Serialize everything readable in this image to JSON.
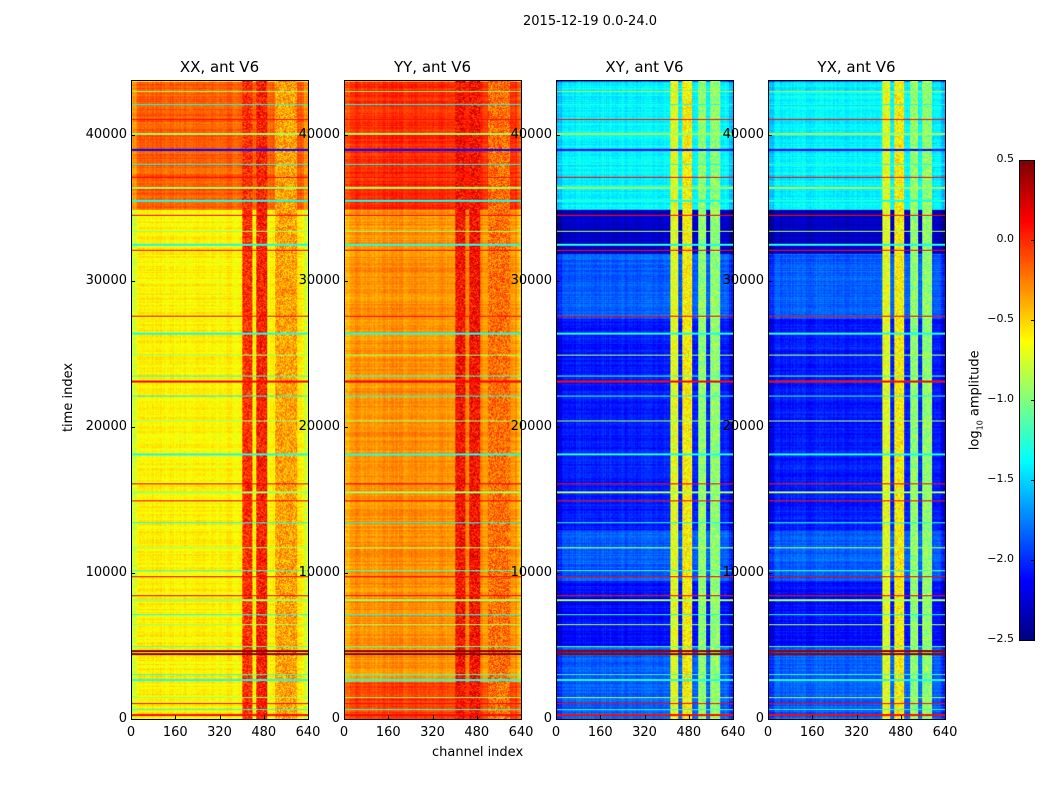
{
  "chart_data": {
    "type": "heatmap",
    "title": "2015-12-19 0.0-24.0",
    "xlabel": "channel index",
    "ylabel": "time index",
    "xlim": [
      0,
      640
    ],
    "ylim": [
      0,
      43800
    ],
    "xticks": [
      0,
      160,
      320,
      480,
      640
    ],
    "yticks": [
      0,
      10000,
      20000,
      30000,
      40000
    ],
    "colormap": "jet",
    "colorbar": {
      "label_main": "log",
      "label_sub": "10",
      "label_rest": " amplitude",
      "range": [
        -2.5,
        0.5
      ],
      "ticks": [
        "0.5",
        "0.0",
        "−0.5",
        "−1.0",
        "−1.5",
        "−2.0",
        "−2.5"
      ],
      "tick_values": [
        0.5,
        0.0,
        -0.5,
        -1.0,
        -1.5,
        -2.0,
        -2.5
      ]
    },
    "panels": [
      {
        "title": "XX, ant V6",
        "base_level": -0.6,
        "regions": [
          {
            "y": [
              35000,
              43800
            ],
            "level": -0.15
          }
        ],
        "channel_bands": [
          {
            "ch": [
              400,
              435
            ],
            "level": 0.0
          },
          {
            "ch": [
              450,
              490
            ],
            "level": 0.05
          },
          {
            "ch": [
              520,
              600
            ],
            "level": -0.35
          }
        ]
      },
      {
        "title": "YY, ant V6",
        "base_level": -0.3,
        "regions": [
          {
            "y": [
              35000,
              43800
            ],
            "level": 0.0
          },
          {
            "y": [
              0,
              2600
            ],
            "level": -0.05
          }
        ],
        "channel_bands": [
          {
            "ch": [
              400,
              435
            ],
            "level": 0.1
          },
          {
            "ch": [
              450,
              490
            ],
            "level": 0.1
          },
          {
            "ch": [
              520,
              600
            ],
            "level": -0.2
          }
        ]
      },
      {
        "title": "XY, ant V6",
        "base_level": -1.85,
        "regions": [
          {
            "y": [
              35000,
              43800
            ],
            "level": -1.4
          },
          {
            "y": [
              32000,
              35000
            ],
            "level": -2.3
          },
          {
            "y": [
              5000,
              9500
            ],
            "level": -2.1
          },
          {
            "y": [
              13000,
              27500
            ],
            "level": -2.05
          }
        ],
        "channel_bands": [
          {
            "ch": [
              410,
              440
            ],
            "level": -0.7
          },
          {
            "ch": [
              455,
              490
            ],
            "level": -0.6
          },
          {
            "ch": [
              510,
              540
            ],
            "level": -0.95
          },
          {
            "ch": [
              555,
              590
            ],
            "level": -0.95
          }
        ]
      },
      {
        "title": "YX, ant V6",
        "base_level": -1.85,
        "regions": [
          {
            "y": [
              35000,
              43800
            ],
            "level": -1.4
          },
          {
            "y": [
              32000,
              35000
            ],
            "level": -2.3
          },
          {
            "y": [
              5000,
              9500
            ],
            "level": -2.1
          },
          {
            "y": [
              13000,
              27500
            ],
            "level": -2.05
          }
        ],
        "channel_bands": [
          {
            "ch": [
              410,
              440
            ],
            "level": -0.7
          },
          {
            "ch": [
              455,
              490
            ],
            "level": -0.6
          },
          {
            "ch": [
              510,
              540
            ],
            "level": -0.95
          },
          {
            "ch": [
              555,
              590
            ],
            "level": -0.95
          }
        ]
      }
    ],
    "flagged_rows": [
      {
        "t": 300,
        "level": 0.1
      },
      {
        "t": 700,
        "level": -1.2
      },
      {
        "t": 1100,
        "level": 0.1
      },
      {
        "t": 1500,
        "level": -0.9
      },
      {
        "t": 2700,
        "level": -1.3
      },
      {
        "t": 3100,
        "level": -1.2
      },
      {
        "t": 4500,
        "level": 0.45
      },
      {
        "t": 4700,
        "level": 0.45
      },
      {
        "t": 5000,
        "level": -1.1
      },
      {
        "t": 6500,
        "level": -0.9
      },
      {
        "t": 7200,
        "level": -1.3
      },
      {
        "t": 8200,
        "level": -0.9
      },
      {
        "t": 8500,
        "level": 0.1
      },
      {
        "t": 9800,
        "level": 0.1
      },
      {
        "t": 10200,
        "level": -1.2
      },
      {
        "t": 11800,
        "level": -0.9
      },
      {
        "t": 13500,
        "level": -1.3
      },
      {
        "t": 15000,
        "level": 0.1
      },
      {
        "t": 15600,
        "level": -0.9
      },
      {
        "t": 16200,
        "level": 0.1
      },
      {
        "t": 18200,
        "level": -1.3
      },
      {
        "t": 20500,
        "level": -0.9
      },
      {
        "t": 22200,
        "level": -1.3
      },
      {
        "t": 23200,
        "level": 0.1
      },
      {
        "t": 23600,
        "level": -1.2
      },
      {
        "t": 25000,
        "level": -0.9
      },
      {
        "t": 26500,
        "level": -1.3
      },
      {
        "t": 27700,
        "level": 0.1
      },
      {
        "t": 32200,
        "level": 0.1
      },
      {
        "t": 32600,
        "level": -1.3
      },
      {
        "t": 33500,
        "level": -0.9
      },
      {
        "t": 34600,
        "level": 0.1
      },
      {
        "t": 35600,
        "level": -1.3
      },
      {
        "t": 36500,
        "level": -0.9
      },
      {
        "t": 37200,
        "level": 0.1
      },
      {
        "t": 38100,
        "level": -1.3
      },
      {
        "t": 39100,
        "level": -2.1
      },
      {
        "t": 40200,
        "level": -0.9
      },
      {
        "t": 41200,
        "level": 0.1
      },
      {
        "t": 42200,
        "level": -1.3
      },
      {
        "t": 43100,
        "level": -0.9
      }
    ]
  }
}
